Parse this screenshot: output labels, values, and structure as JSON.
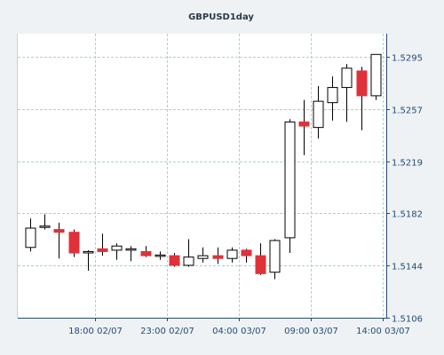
{
  "chart_data": {
    "type": "candlestick",
    "title": "GBPUSD1day",
    "xlabel": "",
    "ylabel": "",
    "ylim": [
      1.5106,
      1.5312
    ],
    "yticks": [
      "1.5295",
      "1.5257",
      "1.5219",
      "1.5182",
      "1.5144",
      "1.5106"
    ],
    "xticks": [
      {
        "index": 5,
        "label": "18:00 02/07"
      },
      {
        "index": 10,
        "label": "23:00 02/07"
      },
      {
        "index": 15,
        "label": "04:00 03/07"
      },
      {
        "index": 20,
        "label": "09:00 03/07"
      },
      {
        "index": 25,
        "label": "14:00 03/07"
      }
    ],
    "grid": true,
    "colors": {
      "up": "#ffffff",
      "down": "#e0313a",
      "outline": "#000000",
      "grid": "#9fd6d4"
    },
    "candles": [
      {
        "open": 1.5157,
        "high": 1.5178,
        "low": 1.5154,
        "close": 1.5171
      },
      {
        "open": 1.5172,
        "high": 1.5181,
        "low": 1.517,
        "close": 1.5172
      },
      {
        "open": 1.517,
        "high": 1.5175,
        "low": 1.5149,
        "close": 1.5168
      },
      {
        "open": 1.5168,
        "high": 1.517,
        "low": 1.515,
        "close": 1.5153
      },
      {
        "open": 1.5153,
        "high": 1.5155,
        "low": 1.514,
        "close": 1.5154
      },
      {
        "open": 1.5156,
        "high": 1.5167,
        "low": 1.5151,
        "close": 1.5154
      },
      {
        "open": 1.5155,
        "high": 1.516,
        "low": 1.5148,
        "close": 1.5158
      },
      {
        "open": 1.5155,
        "high": 1.5158,
        "low": 1.5147,
        "close": 1.5156
      },
      {
        "open": 1.5154,
        "high": 1.5158,
        "low": 1.515,
        "close": 1.5151
      },
      {
        "open": 1.5151,
        "high": 1.5154,
        "low": 1.5148,
        "close": 1.5151
      },
      {
        "open": 1.5151,
        "high": 1.5153,
        "low": 1.5143,
        "close": 1.5144
      },
      {
        "open": 1.5144,
        "high": 1.5163,
        "low": 1.5143,
        "close": 1.515
      },
      {
        "open": 1.5149,
        "high": 1.5157,
        "low": 1.5146,
        "close": 1.5151
      },
      {
        "open": 1.5151,
        "high": 1.5157,
        "low": 1.5145,
        "close": 1.5149
      },
      {
        "open": 1.5149,
        "high": 1.5157,
        "low": 1.5146,
        "close": 1.5155
      },
      {
        "open": 1.5155,
        "high": 1.5156,
        "low": 1.5146,
        "close": 1.5151
      },
      {
        "open": 1.5151,
        "high": 1.516,
        "low": 1.5137,
        "close": 1.5138
      },
      {
        "open": 1.5139,
        "high": 1.5163,
        "low": 1.5134,
        "close": 1.5162
      },
      {
        "open": 1.5164,
        "high": 1.525,
        "low": 1.5153,
        "close": 1.5248
      },
      {
        "open": 1.5248,
        "high": 1.5264,
        "low": 1.5224,
        "close": 1.5245
      },
      {
        "open": 1.5244,
        "high": 1.5274,
        "low": 1.5236,
        "close": 1.5263
      },
      {
        "open": 1.5262,
        "high": 1.5281,
        "low": 1.5249,
        "close": 1.5273
      },
      {
        "open": 1.5273,
        "high": 1.529,
        "low": 1.5248,
        "close": 1.5287
      },
      {
        "open": 1.5285,
        "high": 1.5288,
        "low": 1.5242,
        "close": 1.5267
      },
      {
        "open": 1.5267,
        "high": 1.5297,
        "low": 1.5264,
        "close": 1.5297
      }
    ]
  }
}
